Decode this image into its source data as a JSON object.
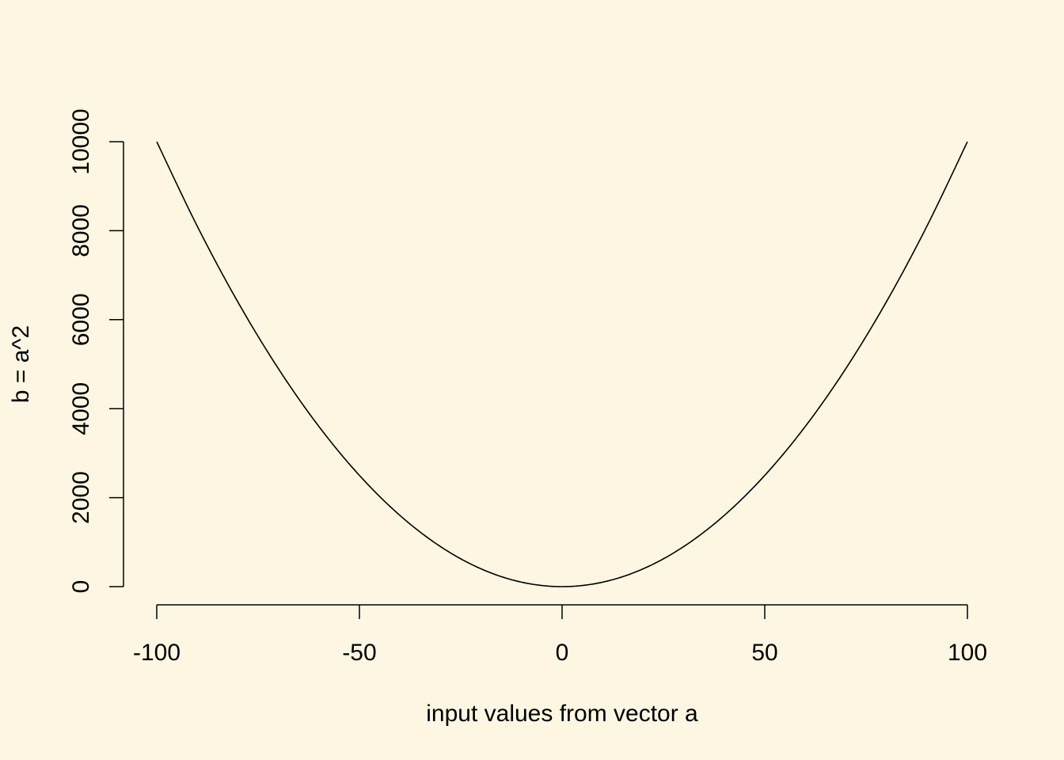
{
  "colors": {
    "background": "#fdf6e3",
    "line": "#000000",
    "axis": "#000000"
  },
  "chart_data": {
    "type": "line",
    "title": "",
    "xlabel": "input values from vector a",
    "ylabel": "b = a^2",
    "xlim": [
      -100,
      100
    ],
    "ylim": [
      0,
      10000
    ],
    "x_ticks": [
      -100,
      -50,
      0,
      50,
      100
    ],
    "x_tick_labels": [
      "-100",
      "-50",
      "0",
      "50",
      "100"
    ],
    "y_ticks": [
      0,
      2000,
      4000,
      6000,
      8000,
      10000
    ],
    "y_tick_labels": [
      "0",
      "2000",
      "4000",
      "6000",
      "8000",
      "10000"
    ],
    "grid": false,
    "legend": "none",
    "series": [
      {
        "x": [
          -100,
          -90,
          -80,
          -70,
          -60,
          -50,
          -40,
          -30,
          -20,
          -10,
          0,
          10,
          20,
          30,
          40,
          50,
          60,
          70,
          80,
          90,
          100
        ],
        "values": [
          10000,
          8100,
          6400,
          4900,
          3600,
          2500,
          1600,
          900,
          400,
          100,
          0,
          100,
          400,
          900,
          1600,
          2500,
          3600,
          4900,
          6400,
          8100,
          10000
        ]
      }
    ]
  }
}
